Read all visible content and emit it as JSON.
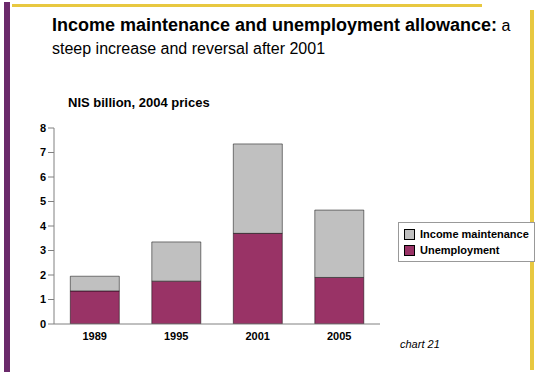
{
  "chart_data": {
    "type": "bar",
    "title": "Income maintenance and unemployment allowance: a steep increase and reversal after 2001",
    "subtitle": "NIS billion, 2004 prices",
    "annotation": "chart 21",
    "categories": [
      "1989",
      "1995",
      "2001",
      "2005"
    ],
    "series": [
      {
        "name": "Unemployment",
        "color": "#993366",
        "values": [
          1.35,
          1.75,
          3.7,
          1.9
        ]
      },
      {
        "name": "Income maintenance",
        "color": "#c0c0c0",
        "values": [
          0.6,
          1.6,
          3.65,
          2.75
        ]
      }
    ],
    "stacked": true,
    "ylim": [
      0,
      8
    ],
    "yticks": [
      0,
      1,
      2,
      3,
      4,
      5,
      6,
      7,
      8
    ],
    "grid": false,
    "legend": "right"
  }
}
